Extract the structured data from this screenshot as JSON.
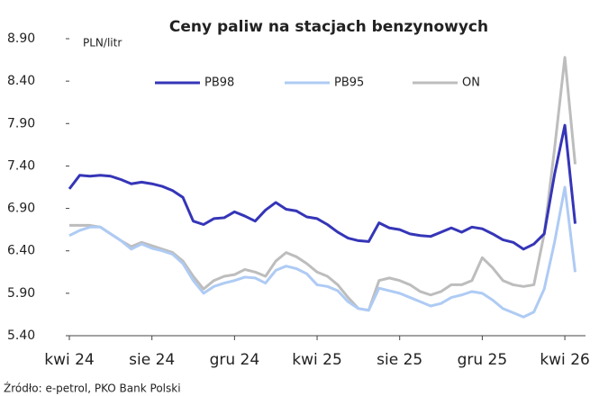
{
  "chart_data": {
    "type": "line",
    "title": "Ceny paliw na stacjach benzynowych",
    "y_label": "PLN/litr",
    "source": "Źródło: e-petrol, PKO Bank Polski",
    "categories": [
      "kwi 24",
      null,
      null,
      null,
      null,
      null,
      null,
      null,
      "sie 24",
      null,
      null,
      null,
      null,
      null,
      null,
      null,
      "gru 24",
      null,
      null,
      null,
      null,
      null,
      null,
      null,
      "kwi 25",
      null,
      null,
      null,
      null,
      null,
      null,
      null,
      "sie 25",
      null,
      null,
      null,
      null,
      null,
      null,
      null,
      "gru 25",
      null,
      null,
      null,
      null,
      null,
      null,
      null,
      "kwi 26",
      null
    ],
    "series": [
      {
        "name": "PB98",
        "color": "#3535b8",
        "values": [
          7.13,
          7.29,
          7.28,
          7.29,
          7.28,
          7.24,
          7.19,
          7.21,
          7.19,
          7.16,
          7.11,
          7.03,
          6.75,
          6.71,
          6.78,
          6.79,
          6.86,
          6.81,
          6.75,
          6.88,
          6.97,
          6.89,
          6.87,
          6.8,
          6.78,
          6.71,
          6.62,
          6.55,
          6.52,
          6.51,
          6.73,
          6.67,
          6.65,
          6.6,
          6.58,
          6.57,
          6.62,
          6.67,
          6.62,
          6.68,
          6.66,
          6.6,
          6.53,
          6.5,
          6.42,
          6.48,
          6.6,
          7.3,
          7.88,
          6.72
        ]
      },
      {
        "name": "PB95",
        "color": "#aecbf4",
        "values": [
          6.58,
          6.64,
          6.68,
          6.68,
          6.6,
          6.52,
          6.42,
          6.48,
          6.43,
          6.4,
          6.36,
          6.25,
          6.05,
          5.9,
          5.98,
          6.02,
          6.05,
          6.09,
          6.08,
          6.02,
          6.17,
          6.22,
          6.19,
          6.13,
          6.0,
          5.98,
          5.93,
          5.8,
          5.72,
          5.7,
          5.96,
          5.93,
          5.9,
          5.85,
          5.8,
          5.75,
          5.78,
          5.85,
          5.88,
          5.92,
          5.9,
          5.82,
          5.72,
          5.67,
          5.62,
          5.68,
          5.95,
          6.5,
          7.15,
          6.15
        ]
      },
      {
        "name": "ON",
        "color": "#bdbdbd",
        "values": [
          6.7,
          6.7,
          6.7,
          6.68,
          6.6,
          6.52,
          6.45,
          6.5,
          6.46,
          6.42,
          6.38,
          6.28,
          6.1,
          5.95,
          6.05,
          6.1,
          6.12,
          6.18,
          6.15,
          6.1,
          6.28,
          6.38,
          6.33,
          6.25,
          6.15,
          6.1,
          6.0,
          5.85,
          5.72,
          5.7,
          6.05,
          6.08,
          6.05,
          6.0,
          5.92,
          5.88,
          5.92,
          6.0,
          6.0,
          6.05,
          6.32,
          6.2,
          6.05,
          6.0,
          5.98,
          6.0,
          6.6,
          7.6,
          8.68,
          7.42
        ]
      }
    ],
    "ylim": [
      5.4,
      8.9
    ],
    "yticks": [
      {
        "value": 5.4,
        "label": "5.40"
      },
      {
        "value": 5.9,
        "label": "5.90"
      },
      {
        "value": 6.4,
        "label": "6.40"
      },
      {
        "value": 6.9,
        "label": "6.90"
      },
      {
        "value": 7.4,
        "label": "7.40"
      },
      {
        "value": 7.9,
        "label": "7.90"
      },
      {
        "value": 8.4,
        "label": "8.40"
      },
      {
        "value": 8.9,
        "label": "8.90"
      }
    ],
    "grid": false,
    "legend": "top"
  }
}
